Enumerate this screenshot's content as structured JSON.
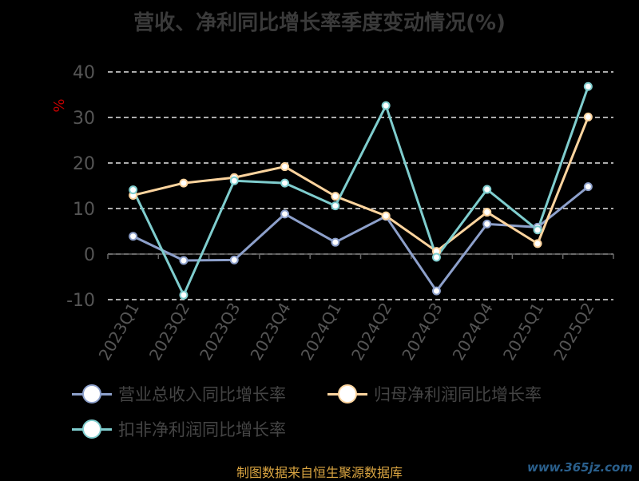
{
  "title": "营收、净利同比增长率季度变动情况(%)",
  "source": "制图数据来自恒生聚源数据库",
  "watermark": "www.365jz.com",
  "chart_data": {
    "type": "line",
    "ylabel": "%",
    "ylim": [
      -10,
      40
    ],
    "yticks": [
      -10,
      0,
      10,
      20,
      30,
      40
    ],
    "grid": true,
    "legend_position": "bottom",
    "categories": [
      "2023Q1",
      "2023Q2",
      "2023Q3",
      "2023Q4",
      "2024Q1",
      "2024Q2",
      "2024Q3",
      "2024Q4",
      "2025Q1",
      "2025Q2"
    ],
    "series": [
      {
        "name": "营业总收入同比增长率",
        "color": "#8da0cb",
        "values": [
          3.9,
          -1.4,
          -1.3,
          8.8,
          2.6,
          8.3,
          -8.1,
          6.6,
          5.9,
          14.8
        ]
      },
      {
        "name": "归母净利润同比增长率",
        "color": "#fdd49e",
        "values": [
          12.9,
          15.6,
          16.8,
          19.2,
          12.7,
          8.4,
          0.6,
          9.2,
          2.3,
          30.1
        ]
      },
      {
        "name": "扣非净利润同比增长率",
        "color": "#7fcdce",
        "values": [
          14.1,
          -9.0,
          16.1,
          15.6,
          10.6,
          32.6,
          -0.7,
          14.2,
          5.3,
          36.8
        ]
      }
    ]
  }
}
